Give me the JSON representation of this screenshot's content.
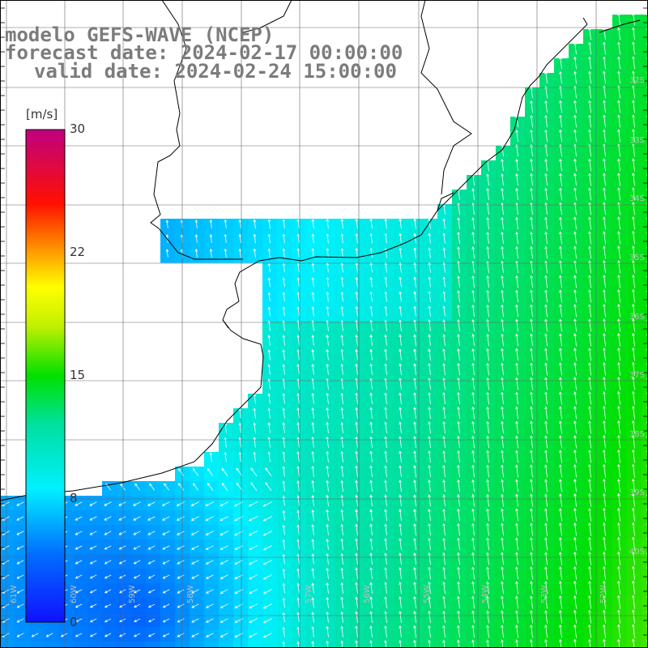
{
  "header": {
    "model_line": "modelo GEFS-WAVE (NCEP)",
    "forecast_line": "forecast date: 2024-02-17 00:00:00",
    "valid_line": "valid date: 2024-02-24 15:00:00"
  },
  "colorbar": {
    "unit": "[m/s]",
    "ticks": [
      "30",
      "22",
      "15",
      "8",
      "0"
    ],
    "range": [
      0,
      30
    ],
    "colors": [
      "#1010ff",
      "#00a0ff",
      "#00ffff",
      "#00e000",
      "#ffff00",
      "#ff8000",
      "#ff0000",
      "#c00080"
    ]
  },
  "map": {
    "latitude_labels": [
      "32S",
      "33S",
      "34S",
      "35S",
      "36S",
      "37S",
      "38S",
      "39S",
      "40S"
    ],
    "longitude_labels": [
      "61W",
      "60W",
      "59W",
      "58W",
      "57W",
      "56W",
      "55W",
      "54W",
      "53W",
      "52W",
      "51W"
    ],
    "field": "wind speed with direction arrows",
    "grid": true
  }
}
